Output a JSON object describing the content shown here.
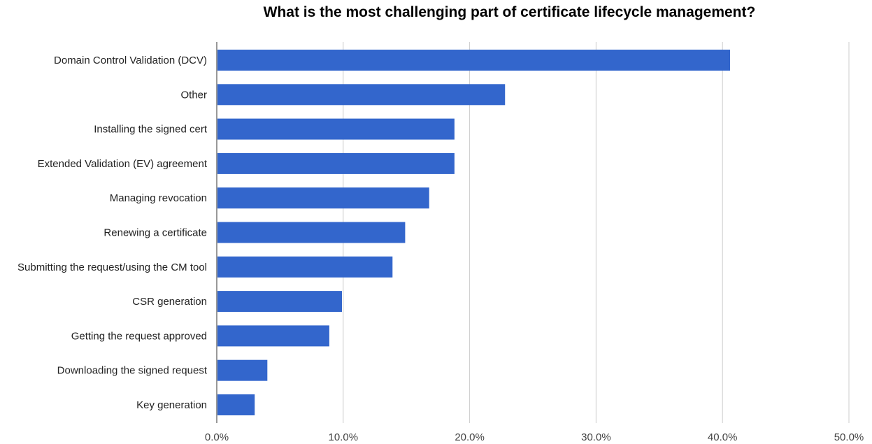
{
  "chart_data": {
    "type": "bar",
    "orientation": "horizontal",
    "title": "What is the most challenging part of certificate lifecycle management?",
    "categories": [
      "Domain Control Validation (DCV)",
      "Other",
      "Installing the signed cert",
      "Extended Validation (EV) agreement",
      "Managing revocation",
      "Renewing a certificate",
      "Submitting the request/using the CM tool",
      "CSR generation",
      "Getting the request approved",
      "Downloading the signed request",
      "Key generation"
    ],
    "values": [
      40.6,
      22.8,
      18.8,
      18.8,
      16.8,
      14.9,
      13.9,
      9.9,
      8.9,
      4.0,
      3.0
    ],
    "xlim": [
      0,
      50
    ],
    "x_ticks": [
      "0.0%",
      "10.0%",
      "20.0%",
      "30.0%",
      "40.0%",
      "50.0%"
    ],
    "x_tick_values": [
      0,
      10,
      20,
      30,
      40,
      50
    ],
    "grid": "vertical",
    "legend": "none",
    "bar_color": "#3366cc",
    "grid_color": "#cccccc"
  }
}
